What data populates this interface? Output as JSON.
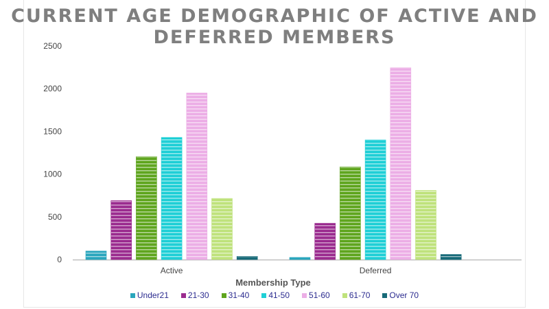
{
  "chart_data": {
    "type": "bar",
    "title": "CURRENT AGE DEMOGRAPHIC OF ACTIVE AND DEFERRED MEMBERS",
    "xlabel": "Membership Type",
    "ylabel": "",
    "categories": [
      "Active",
      "Deferred"
    ],
    "ylim": [
      0,
      2500
    ],
    "yticks": [
      "0",
      "500",
      "1000",
      "1500",
      "2000",
      "2500"
    ],
    "grid": false,
    "legend_position": "bottom",
    "series": [
      {
        "name": "Under21",
        "values": [
          100,
          25
        ],
        "color": "#2aa6bd"
      },
      {
        "name": "21-30",
        "values": [
          690,
          425
        ],
        "color": "#9b2c8f"
      },
      {
        "name": "31-40",
        "values": [
          1205,
          1085
        ],
        "color": "#5fa51e"
      },
      {
        "name": "41-50",
        "values": [
          1430,
          1400
        ],
        "color": "#1fcfd6"
      },
      {
        "name": "51-60",
        "values": [
          1950,
          2245
        ],
        "color": "#ecaee6"
      },
      {
        "name": "61-70",
        "values": [
          715,
          810
        ],
        "color": "#bfe27c"
      },
      {
        "name": "Over 70",
        "values": [
          38,
          60
        ],
        "color": "#176a78"
      }
    ]
  }
}
